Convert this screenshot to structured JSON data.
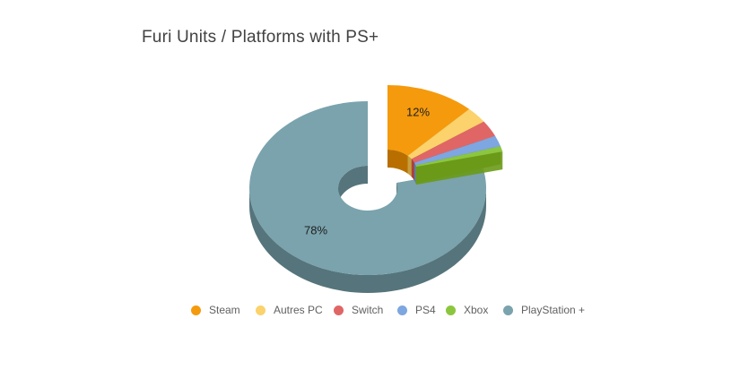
{
  "chart_data": {
    "type": "pie",
    "style": "3d-donut-exploded",
    "title": "Furi Units / Platforms with PS+",
    "slices": [
      {
        "name": "Steam",
        "value": 12,
        "label": "12%",
        "color": "#f59a0c",
        "side_color": "#b86f00"
      },
      {
        "name": "Autres PC",
        "value": 3,
        "label": "",
        "color": "#fbd26b",
        "side_color": "#c59e3d"
      },
      {
        "name": "Switch",
        "value": 3,
        "label": "",
        "color": "#e06666",
        "side_color": "#a74343"
      },
      {
        "name": "PS4",
        "value": 2,
        "label": "",
        "color": "#7ea6e0",
        "side_color": "#5a7db0"
      },
      {
        "name": "Xbox",
        "value": 1,
        "label": "",
        "color": "#8cc63f",
        "side_color": "#6a9a17"
      },
      {
        "name": "PlayStation +",
        "value": 78,
        "label": "78%",
        "color": "#7aa3ad",
        "side_color": "#56747b"
      }
    ],
    "exploded": [
      "Steam",
      "Autres PC",
      "Switch",
      "PS4",
      "Xbox"
    ],
    "legend_position": "bottom"
  }
}
